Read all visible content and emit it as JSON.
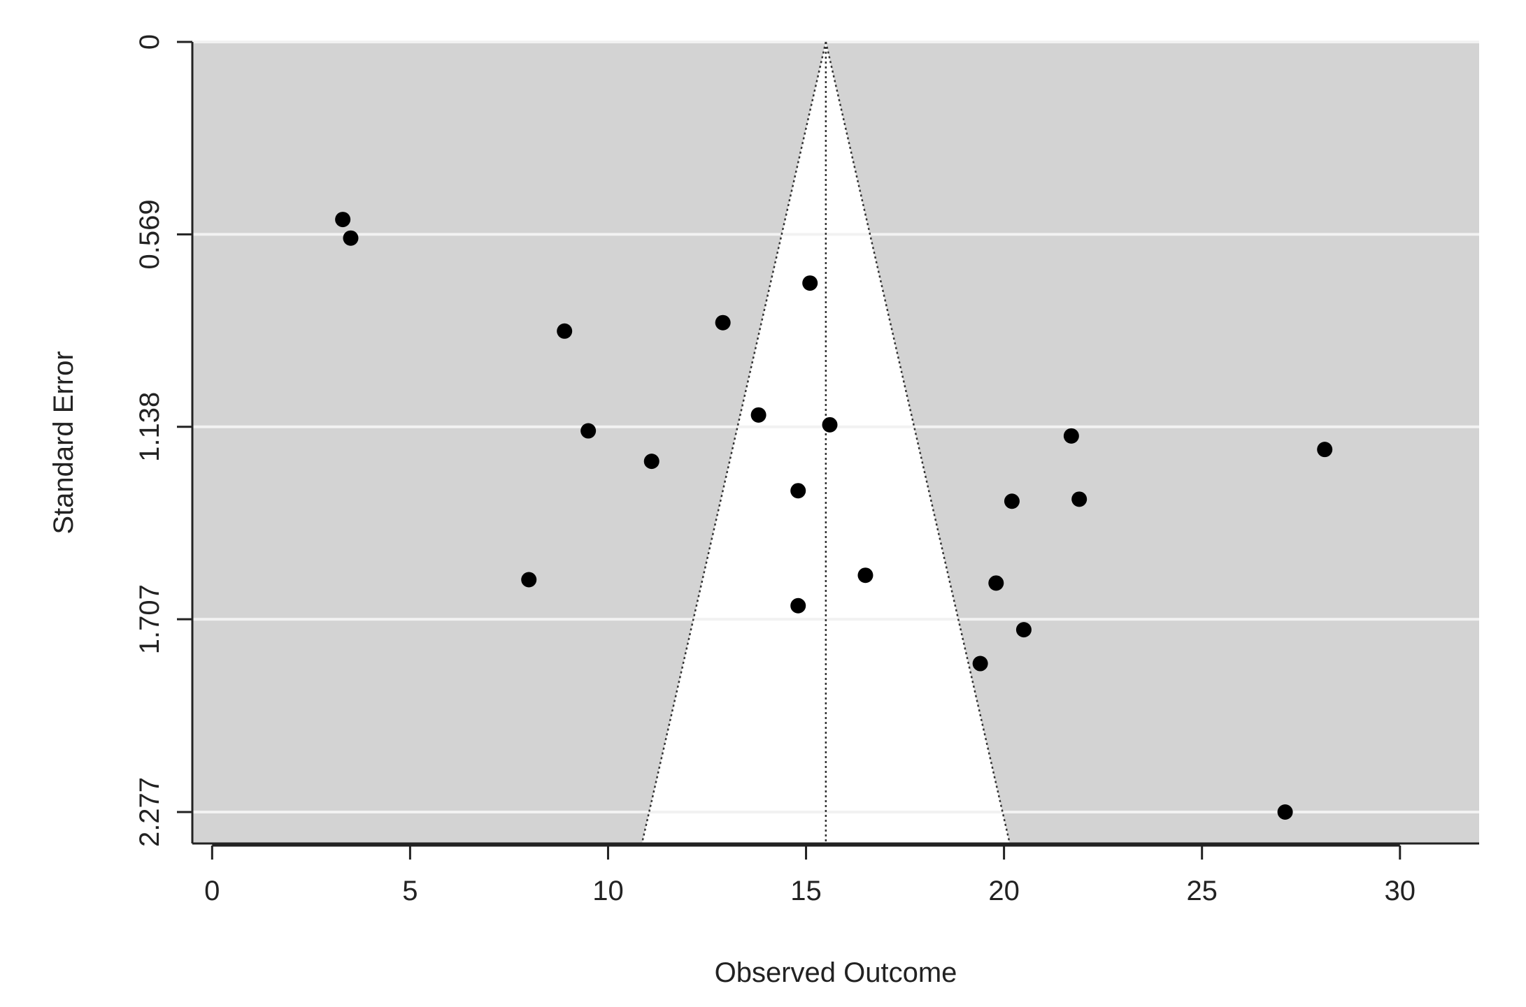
{
  "chart_data": {
    "type": "scatter",
    "title": "",
    "xlabel": "Observed Outcome",
    "ylabel": "Standard Error",
    "xlim": [
      -0.5,
      32
    ],
    "ylim": [
      0,
      2.37
    ],
    "y_reversed": true,
    "x_ticks": [
      0,
      5,
      10,
      15,
      20,
      25,
      30
    ],
    "x_tick_labels": [
      "0",
      "5",
      "10",
      "15",
      "20",
      "25",
      "30"
    ],
    "y_ticks": [
      0,
      0.569,
      1.138,
      1.707,
      2.277
    ],
    "y_tick_labels": [
      "0",
      "0.569",
      "1.138",
      "1.707",
      "2.277"
    ],
    "grid": "horizontal",
    "funnel": {
      "center": 15.5,
      "z": 1.96,
      "max_se": 2.37
    },
    "colors": {
      "panel": "#d3d3d3",
      "funnel": "#ffffff",
      "grid": "#f2f2f2",
      "points": "#000000",
      "axis": "#222222"
    },
    "points": [
      {
        "x": 3.3,
        "y": 0.525
      },
      {
        "x": 3.5,
        "y": 0.58
      },
      {
        "x": 8.9,
        "y": 0.855
      },
      {
        "x": 9.5,
        "y": 1.15
      },
      {
        "x": 8.0,
        "y": 1.59
      },
      {
        "x": 11.1,
        "y": 1.24
      },
      {
        "x": 12.9,
        "y": 0.83
      },
      {
        "x": 13.8,
        "y": 1.103
      },
      {
        "x": 15.1,
        "y": 0.713
      },
      {
        "x": 15.6,
        "y": 1.132
      },
      {
        "x": 14.8,
        "y": 1.327
      },
      {
        "x": 14.8,
        "y": 1.667
      },
      {
        "x": 16.5,
        "y": 1.577
      },
      {
        "x": 19.8,
        "y": 1.6
      },
      {
        "x": 20.5,
        "y": 1.738
      },
      {
        "x": 19.4,
        "y": 1.838
      },
      {
        "x": 20.2,
        "y": 1.358
      },
      {
        "x": 21.7,
        "y": 1.165
      },
      {
        "x": 21.9,
        "y": 1.352
      },
      {
        "x": 28.1,
        "y": 1.205
      },
      {
        "x": 27.1,
        "y": 2.277
      }
    ]
  }
}
